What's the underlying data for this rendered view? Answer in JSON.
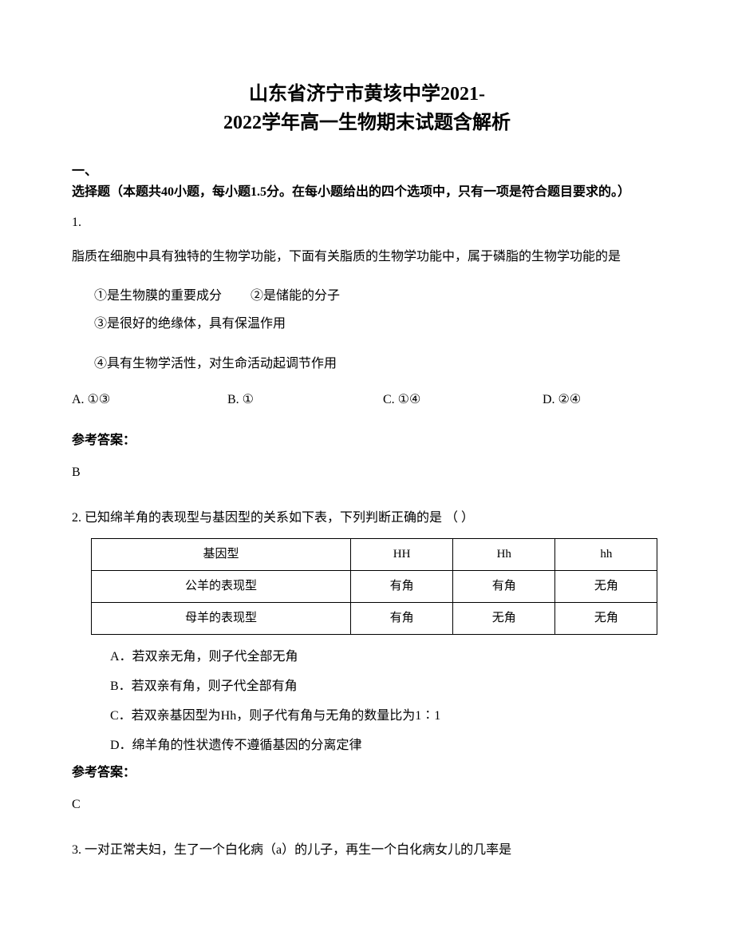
{
  "document": {
    "title_line1": "山东省济宁市黄垓中学2021-",
    "title_line2": "2022学年高一生物期末试题含解析",
    "section_header_line1": "一、",
    "section_header_line2": "选择题（本题共40小题，每小题1.5分。在每小题给出的四个选项中，只有一项是符合题目要求的。）"
  },
  "q1": {
    "number": "1.",
    "text": "脂质在细胞中具有独特的生物学功能，下面有关脂质的生物学功能中，属于磷脂的生物学功能的是",
    "sub1": "①是生物膜的重要成分",
    "sub2": "②是储能的分子",
    "sub3": "③是很好的绝缘体，具有保温作用",
    "sub4": "④具有生物学活性，对生命活动起调节作用",
    "optA": "A. ①③",
    "optB": "B. ①",
    "optC": "C. ①④",
    "optD": "D. ②④",
    "answer_label": "参考答案：",
    "answer_value": "B"
  },
  "q2": {
    "text": "2. 已知绵羊角的表现型与基因型的关系如下表，下列判断正确的是  （      ）",
    "table": {
      "columns": [
        "基因型",
        "HH",
        "Hh",
        "hh"
      ],
      "rows": [
        [
          "公羊的表现型",
          "有角",
          "有角",
          "无角"
        ],
        [
          "母羊的表现型",
          "有角",
          "无角",
          "无角"
        ]
      ],
      "col_widths": [
        "25%",
        "25%",
        "25%",
        "25%"
      ]
    },
    "optA": "A．若双亲无角，则子代全部无角",
    "optB": "B．若双亲有角，则子代全部有角",
    "optC": "C．若双亲基因型为Hh，则子代有角与无角的数量比为1∶1",
    "optD": "D．绵羊角的性状遗传不遵循基因的分离定律",
    "answer_label": "参考答案：",
    "answer_value": "C"
  },
  "q3": {
    "text": "3.   一对正常夫妇，生了一个白化病（a）的儿子，再生一个白化病女儿的几率是"
  },
  "styling": {
    "background_color": "#ffffff",
    "text_color": "#000000",
    "border_color": "#000000",
    "title_fontsize": 24,
    "body_fontsize": 16,
    "font_family": "SimSun"
  }
}
